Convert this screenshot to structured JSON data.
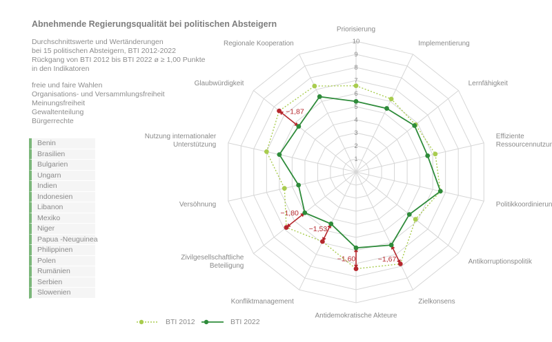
{
  "title": "Abnehmende Regierungsqualität bei politischen Absteigern",
  "description": [
    "Durchschnittswerte und Wertänderungen",
    "bei 15 politischen Absteigern, BTI 2012-2022",
    "Rückgang von BTI 2012 bis BTI 2022 ø ≥ 1,00 Punkte",
    "in den Indikatoren"
  ],
  "indicators_list": [
    "freie und faire Wahlen",
    "Organisations- und Versammlungsfreiheit",
    "Meinungsfreiheit",
    "Gewaltenteilung",
    "Bürgerrechte"
  ],
  "countries": [
    "Benin",
    "Brasilien",
    "Bulgarien",
    "Ungarn",
    "Indien",
    "Indonesien",
    "Libanon",
    "Mexiko",
    "Niger",
    "Papua -Neuguinea",
    "Philippinen",
    "Polen",
    "Rumänien",
    "Serbien",
    "Slowenien"
  ],
  "legend": {
    "bti2012": "BTI 2012",
    "bti2022": "BTI 2022"
  },
  "colors": {
    "bti2012": "#a8cc4e",
    "bti2022": "#2e8b3a",
    "decline": "#b5272d",
    "grid": "#d6d6d6"
  },
  "chart_data": {
    "type": "radar",
    "ticks": [
      "1",
      "2",
      "3",
      "4",
      "5",
      "6",
      "7",
      "8",
      "9",
      "10"
    ],
    "range": [
      0,
      10
    ],
    "axes": [
      {
        "label": [
          "Priorisierung"
        ]
      },
      {
        "label": [
          "Implementierung"
        ]
      },
      {
        "label": [
          "Lernfähigkeit"
        ]
      },
      {
        "label": [
          "Effiziente",
          "Ressourcennutzung"
        ]
      },
      {
        "label": [
          "Politikkoordinierung"
        ]
      },
      {
        "label": [
          "Antikorruptionspolitik"
        ]
      },
      {
        "label": [
          "Zielkonsens"
        ]
      },
      {
        "label": [
          "Antidemokratische Akteure"
        ]
      },
      {
        "label": [
          "Konfliktmanagement"
        ]
      },
      {
        "label": [
          "Zivilgesellschaftliche",
          "Beteiligung"
        ]
      },
      {
        "label": [
          "Versöhnung"
        ]
      },
      {
        "label": [
          "Nutzung internationaler",
          "Unterstützung"
        ]
      },
      {
        "label": [
          "Glaubwürdigkeit"
        ]
      },
      {
        "label": [
          "Regionale Kooperation"
        ]
      }
    ],
    "series": [
      {
        "name": "BTI 2012",
        "values": [
          6.6,
          6.2,
          5.8,
          6.2,
          6.6,
          5.8,
          7.8,
          7.4,
          5.9,
          6.8,
          5.6,
          7.0,
          7.5,
          7.3
        ]
      },
      {
        "name": "BTI 2022",
        "values": [
          5.4,
          5.4,
          5.7,
          5.6,
          6.6,
          5.2,
          6.2,
          5.8,
          4.4,
          5.0,
          4.5,
          6.0,
          5.6,
          6.4
        ]
      }
    ],
    "annotations": [
      {
        "axis_index": 12,
        "text": "−1,87"
      },
      {
        "axis_index": 9,
        "text": "−1,80"
      },
      {
        "axis_index": 8,
        "text": "−1,53"
      },
      {
        "axis_index": 7,
        "text": "−1,60"
      },
      {
        "axis_index": 6,
        "text": "−1,67"
      }
    ]
  }
}
